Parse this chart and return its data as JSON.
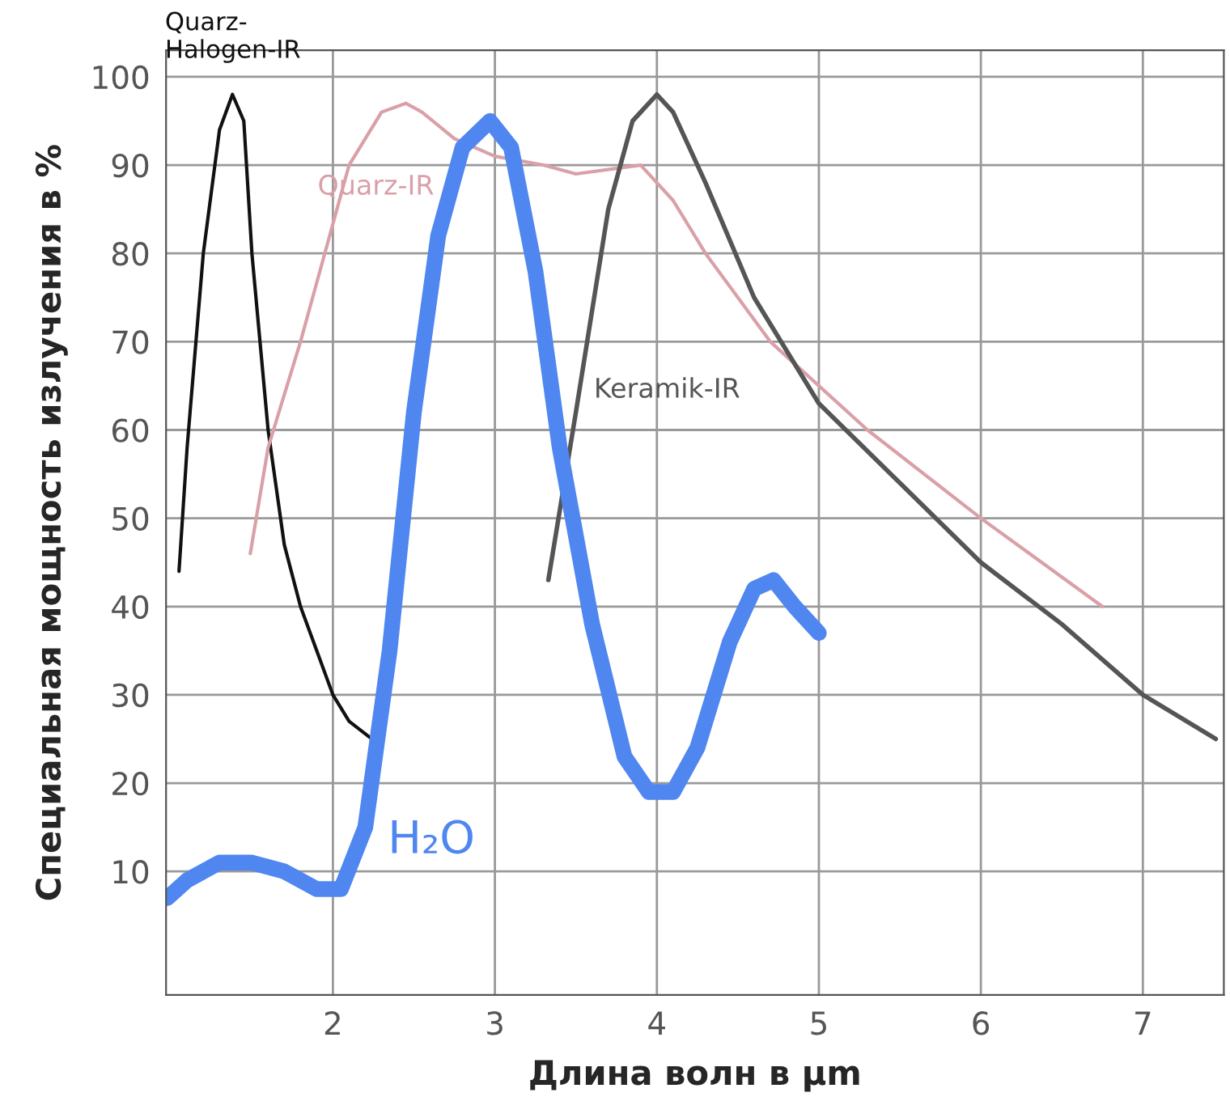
{
  "chart_data": {
    "type": "line",
    "xlabel": "Длина волн в µm",
    "ylabel": "Специальная мощность излучения в %",
    "xlim": [
      0.97,
      7.5
    ],
    "ylim": [
      -4,
      103
    ],
    "xticks": [
      2,
      3,
      4,
      5,
      6,
      7
    ],
    "yticks": [
      10,
      20,
      30,
      40,
      50,
      60,
      70,
      80,
      90,
      100
    ],
    "grid": true,
    "line_style": "solid",
    "marker": "none",
    "series": [
      {
        "name": "Quarz-\nHalogen-IR",
        "color": "#111111",
        "x": [
          1.05,
          1.1,
          1.2,
          1.3,
          1.38,
          1.45,
          1.5,
          1.6,
          1.7,
          1.8,
          1.9,
          2.0,
          2.1,
          2.24
        ],
        "values": [
          44,
          58,
          80,
          94,
          98,
          95,
          80,
          60,
          47,
          40,
          35,
          30,
          27,
          25
        ]
      },
      {
        "name": "Quarz-IR",
        "color": "#d9a0a8",
        "x": [
          1.49,
          1.6,
          1.8,
          1.92,
          2.1,
          2.3,
          2.45,
          2.55,
          2.75,
          3.0,
          3.3,
          3.5,
          3.9,
          4.1,
          4.3,
          4.7,
          5.3,
          6.0,
          6.75
        ],
        "values": [
          46,
          58,
          70,
          78,
          90,
          96,
          97,
          96,
          93,
          91,
          90,
          89,
          90,
          86,
          80,
          70,
          60,
          50,
          40
        ]
      },
      {
        "name": "Keramik-IR",
        "color": "#555555",
        "x": [
          3.33,
          3.5,
          3.7,
          3.85,
          4.0,
          4.1,
          4.3,
          4.6,
          5.0,
          5.5,
          6.0,
          6.5,
          7.0,
          7.45
        ],
        "values": [
          43,
          62,
          85,
          95,
          98,
          96,
          88,
          75,
          63,
          54,
          45,
          38,
          30,
          25
        ]
      },
      {
        "name": "H₂O",
        "color": "#4f86f0",
        "x": [
          0.98,
          1.1,
          1.3,
          1.5,
          1.7,
          1.9,
          2.05,
          2.2,
          2.35,
          2.5,
          2.65,
          2.8,
          2.97,
          3.1,
          3.25,
          3.4,
          3.6,
          3.8,
          3.95,
          4.1,
          4.25,
          4.45,
          4.6,
          4.72,
          4.85,
          5.0
        ],
        "values": [
          7,
          9,
          11,
          11,
          10,
          8,
          8,
          15,
          35,
          62,
          82,
          92,
          95,
          92,
          78,
          58,
          38,
          23,
          19,
          19,
          24,
          36,
          42,
          43,
          40,
          37
        ]
      }
    ]
  }
}
